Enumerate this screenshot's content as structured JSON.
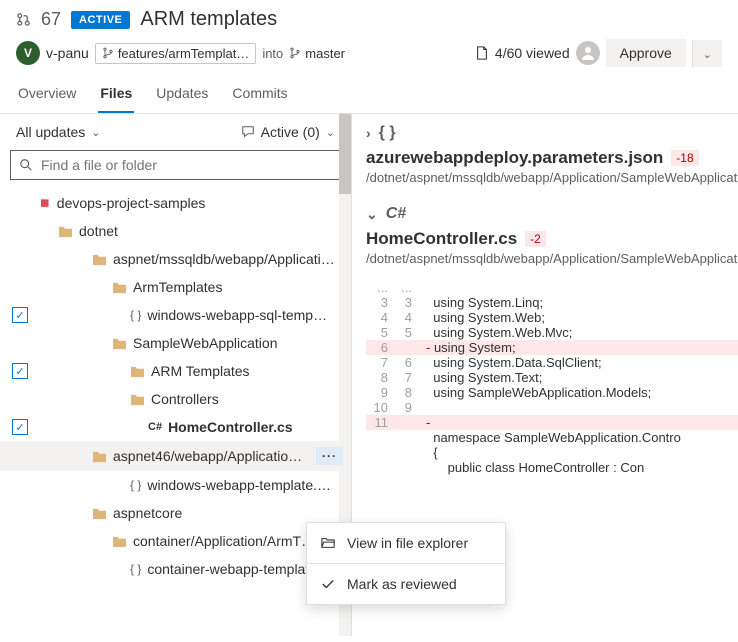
{
  "header": {
    "pr_number": "67",
    "status": "ACTIVE",
    "title": "ARM templates"
  },
  "subheader": {
    "avatar_initial": "V",
    "avatar_bg": "#2c5f2d",
    "username": "v-panu",
    "source_branch": "features/armTemplat…",
    "into": "into",
    "target_branch": "master",
    "viewed": "4/60 viewed",
    "approve": "Approve"
  },
  "tabs": [
    "Overview",
    "Files",
    "Updates",
    "Commits"
  ],
  "active_tab": "Files",
  "filters": {
    "left": "All updates",
    "right": "Active (0)"
  },
  "search_placeholder": "Find a file or folder",
  "tree": [
    {
      "type": "repo",
      "label": "devops-project-samples",
      "indent": 0
    },
    {
      "type": "folder",
      "label": "dotnet",
      "indent": 1
    },
    {
      "type": "folder",
      "label": "aspnet/mssqldb/webapp/Applicati…",
      "indent": 2
    },
    {
      "type": "folder",
      "label": "ArmTemplates",
      "indent": 3
    },
    {
      "type": "file",
      "label": "windows-webapp-sql-temp…",
      "indent": 4,
      "checked": true,
      "icon": "braces"
    },
    {
      "type": "folder",
      "label": "SampleWebApplication",
      "indent": 3
    },
    {
      "type": "folder",
      "label": "ARM Templates",
      "indent": 4,
      "checked": true
    },
    {
      "type": "folder",
      "label": "Controllers",
      "indent": 4
    },
    {
      "type": "file",
      "label": "HomeController.cs",
      "indent": 4,
      "checked": true,
      "icon": "cs",
      "bold": true,
      "extra_indent": true
    },
    {
      "type": "folder",
      "label": "aspnet46/webapp/Applicatio…",
      "indent": 2,
      "more": true,
      "hover": true
    },
    {
      "type": "file",
      "label": "windows-webapp-template.…",
      "indent": 4,
      "icon": "braces"
    },
    {
      "type": "folder",
      "label": "aspnetcore",
      "indent": 2
    },
    {
      "type": "folder",
      "label": "container/Application/ArmT…",
      "indent": 3
    },
    {
      "type": "file",
      "label": "container-webapp-templat…",
      "indent": 4,
      "icon": "braces"
    }
  ],
  "context_menu": {
    "items": [
      {
        "icon": "folder-open",
        "label": "View in file explorer"
      },
      {
        "icon": "check",
        "label": "Mark as reviewed"
      }
    ]
  },
  "files": [
    {
      "collapsed": true,
      "lang_icon": "{ }",
      "name": "azurewebappdeploy.parameters.json",
      "diff": "-18",
      "path": "/dotnet/aspnet/mssqldb/webapp/Application/SampleWebApplicat"
    },
    {
      "collapsed": false,
      "lang_icon": "C#",
      "name": "HomeController.cs",
      "diff": "-2",
      "path": "/dotnet/aspnet/mssqldb/webapp/Application/SampleWebApplicati",
      "code": [
        {
          "l1": "...",
          "l2": "...",
          "txt": ""
        },
        {
          "l1": "3",
          "l2": "3",
          "txt": "using System.Linq;"
        },
        {
          "l1": "4",
          "l2": "4",
          "txt": "using System.Web;"
        },
        {
          "l1": "5",
          "l2": "5",
          "txt": "using System.Web.Mvc;"
        },
        {
          "l1": "6",
          "l2": "",
          "txt": "using System;",
          "del": true
        },
        {
          "l1": "7",
          "l2": "6",
          "txt": "using System.Data.SqlClient;"
        },
        {
          "l1": "8",
          "l2": "7",
          "txt": "using System.Text;"
        },
        {
          "l1": "9",
          "l2": "8",
          "txt": "using SampleWebApplication.Models;"
        },
        {
          "l1": "10",
          "l2": "9",
          "txt": ""
        },
        {
          "l1": "11",
          "l2": "",
          "txt": "",
          "del": true
        },
        {
          "l1": "",
          "l2": "",
          "txt": "namespace SampleWebApplication.Contro"
        },
        {
          "l1": "",
          "l2": "",
          "txt": "{"
        },
        {
          "l1": "",
          "l2": "",
          "txt": "    public class HomeController : Con"
        }
      ]
    }
  ],
  "colors": {
    "primary": "#0078d4",
    "del_bg": "#fde7e9",
    "del_fg": "#a80000",
    "folder": "#dcb67a"
  }
}
